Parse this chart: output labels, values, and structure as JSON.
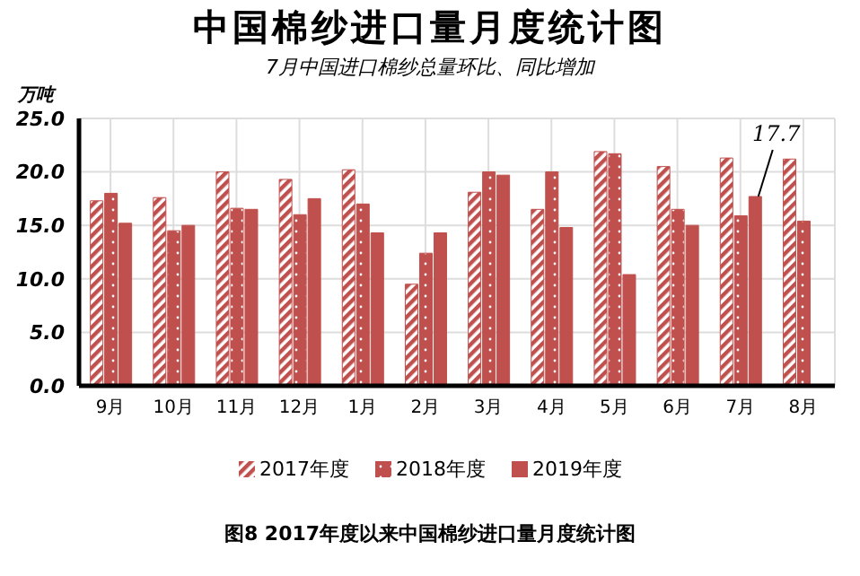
{
  "chart_data": {
    "type": "bar",
    "title": "中国棉纱进口量月度统计图",
    "subtitle": "7月中国进口棉纱总量环比、同比增加",
    "ylabel": "万吨",
    "categories": [
      "9月",
      "10月",
      "11月",
      "12月",
      "1月",
      "2月",
      "3月",
      "4月",
      "5月",
      "6月",
      "7月",
      "8月"
    ],
    "series": [
      {
        "name": "2017年度",
        "color": "#c0504d",
        "values": [
          17.3,
          17.6,
          20.0,
          19.3,
          20.2,
          9.5,
          18.1,
          16.5,
          21.9,
          20.5,
          21.3,
          21.2
        ]
      },
      {
        "name": "2018年度",
        "color": "#c0504d",
        "values": [
          18.0,
          14.5,
          16.6,
          16.0,
          17.0,
          12.4,
          20.0,
          20.0,
          21.7,
          16.5,
          15.9,
          15.4
        ]
      },
      {
        "name": "2019年度",
        "color": "#c0504d",
        "values": [
          15.2,
          15.0,
          16.5,
          17.5,
          14.3,
          14.3,
          19.7,
          14.8,
          10.4,
          15.0,
          17.7,
          null
        ]
      }
    ],
    "ylim": [
      0,
      25
    ],
    "yticks": [
      {
        "value": 0,
        "label": "0.0"
      },
      {
        "value": 5,
        "label": "5.0"
      },
      {
        "value": 10,
        "label": "10.0"
      },
      {
        "value": 15,
        "label": "15.0"
      },
      {
        "value": 20,
        "label": "20.0"
      },
      {
        "value": 25,
        "label": "25.0"
      }
    ],
    "grid": true,
    "legend": "bottom",
    "annotations": [
      {
        "text": "17.7",
        "x": "7月",
        "y": 17.7
      },
      "图8  2017年度以来中国棉纱进口量月度统计图"
    ]
  }
}
